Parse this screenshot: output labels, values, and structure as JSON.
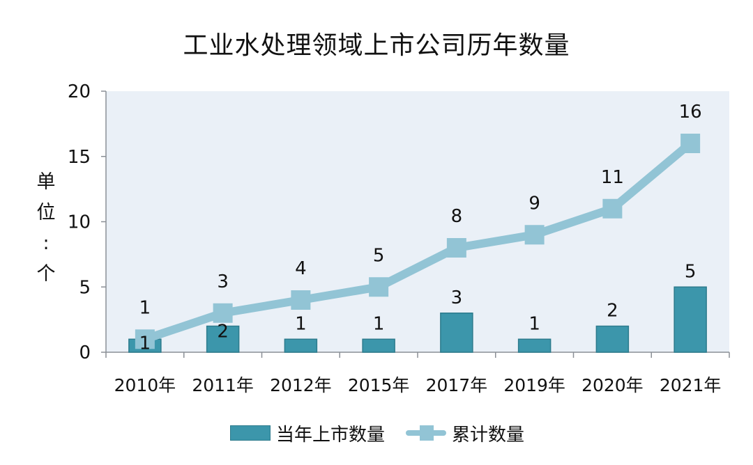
{
  "chart_data": {
    "type": "bar+line",
    "title": "工业水处理领域上市公司历年数量",
    "xlabel": "",
    "ylabel": "单位：个",
    "ylabel_chars": [
      "单",
      "位",
      ":",
      "个"
    ],
    "ylim": [
      0,
      20
    ],
    "yticks": [
      "0",
      "5",
      "10",
      "15",
      "20"
    ],
    "categories": [
      "2010年",
      "2011年",
      "2012年",
      "2015年",
      "2017年",
      "2019年",
      "2020年",
      "2021年"
    ],
    "series": [
      {
        "name": "当年上市数量",
        "type": "bar",
        "color": "#3c96ab",
        "values": [
          1,
          2,
          1,
          1,
          3,
          1,
          2,
          5
        ]
      },
      {
        "name": "累计数量",
        "type": "line",
        "color": "#92c4d5",
        "marker": "square",
        "values": [
          1,
          3,
          4,
          5,
          8,
          9,
          11,
          16
        ]
      }
    ],
    "grid": false,
    "plot_background": "#eaf0f7",
    "legend_position": "bottom"
  },
  "legend": {
    "bar_label": "当年上市数量",
    "line_label": "累计数量"
  }
}
